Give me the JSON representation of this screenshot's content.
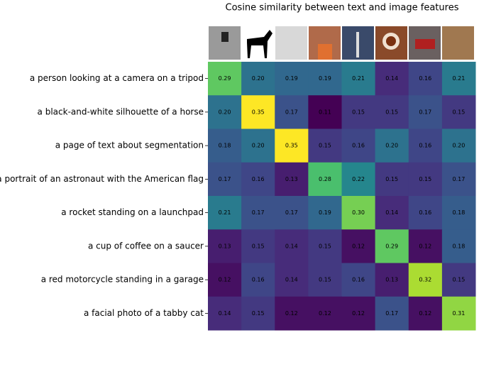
{
  "chart_data": {
    "type": "heatmap",
    "title": "Cosine similarity between text and image features",
    "rows": [
      "a person looking at a camera on a tripod",
      "a black-and-white silhouette of a horse",
      "a page of text about segmentation",
      "a portrait of an astronaut with the American flag",
      "a rocket standing on a launchpad",
      "a cup of coffee on a saucer",
      "a red motorcycle standing in a garage",
      "a facial photo of a tabby cat"
    ],
    "values": [
      [
        0.29,
        0.2,
        0.19,
        0.19,
        0.21,
        0.14,
        0.16,
        0.21
      ],
      [
        0.2,
        0.35,
        0.17,
        0.11,
        0.15,
        0.15,
        0.17,
        0.15
      ],
      [
        0.18,
        0.2,
        0.35,
        0.15,
        0.16,
        0.2,
        0.16,
        0.2
      ],
      [
        0.17,
        0.16,
        0.13,
        0.28,
        0.22,
        0.15,
        0.15,
        0.17
      ],
      [
        0.21,
        0.17,
        0.17,
        0.19,
        0.3,
        0.14,
        0.16,
        0.18
      ],
      [
        0.13,
        0.15,
        0.14,
        0.15,
        0.12,
        0.29,
        0.12,
        0.18
      ],
      [
        0.12,
        0.16,
        0.14,
        0.15,
        0.16,
        0.13,
        0.32,
        0.15
      ],
      [
        0.14,
        0.15,
        0.12,
        0.12,
        0.12,
        0.17,
        0.12,
        0.31
      ]
    ],
    "value_labels": [
      [
        "0.29",
        "0.20",
        "0.19",
        "0.19",
        "0.21",
        "0.14",
        "0.16",
        "0.21"
      ],
      [
        "0.20",
        "0.35",
        "0.17",
        "0.11",
        "0.15",
        "0.15",
        "0.17",
        "0.15"
      ],
      [
        "0.18",
        "0.20",
        "0.35",
        "0.15",
        "0.16",
        "0.20",
        "0.16",
        "0.20"
      ],
      [
        "0.17",
        "0.16",
        "0.13",
        "0.28",
        "0.22",
        "0.15",
        "0.15",
        "0.17"
      ],
      [
        "0.21",
        "0.17",
        "0.17",
        "0.19",
        "0.30",
        "0.14",
        "0.16",
        "0.18"
      ],
      [
        "0.13",
        "0.15",
        "0.14",
        "0.15",
        "0.12",
        "0.29",
        "0.12",
        "0.18"
      ],
      [
        "0.12",
        "0.16",
        "0.14",
        "0.15",
        "0.16",
        "0.13",
        "0.32",
        "0.15"
      ],
      [
        "0.14",
        "0.15",
        "0.12",
        "0.12",
        "0.12",
        "0.17",
        "0.12",
        "0.31"
      ]
    ],
    "colormap": "viridis",
    "clim": [
      0.11,
      0.35
    ]
  }
}
